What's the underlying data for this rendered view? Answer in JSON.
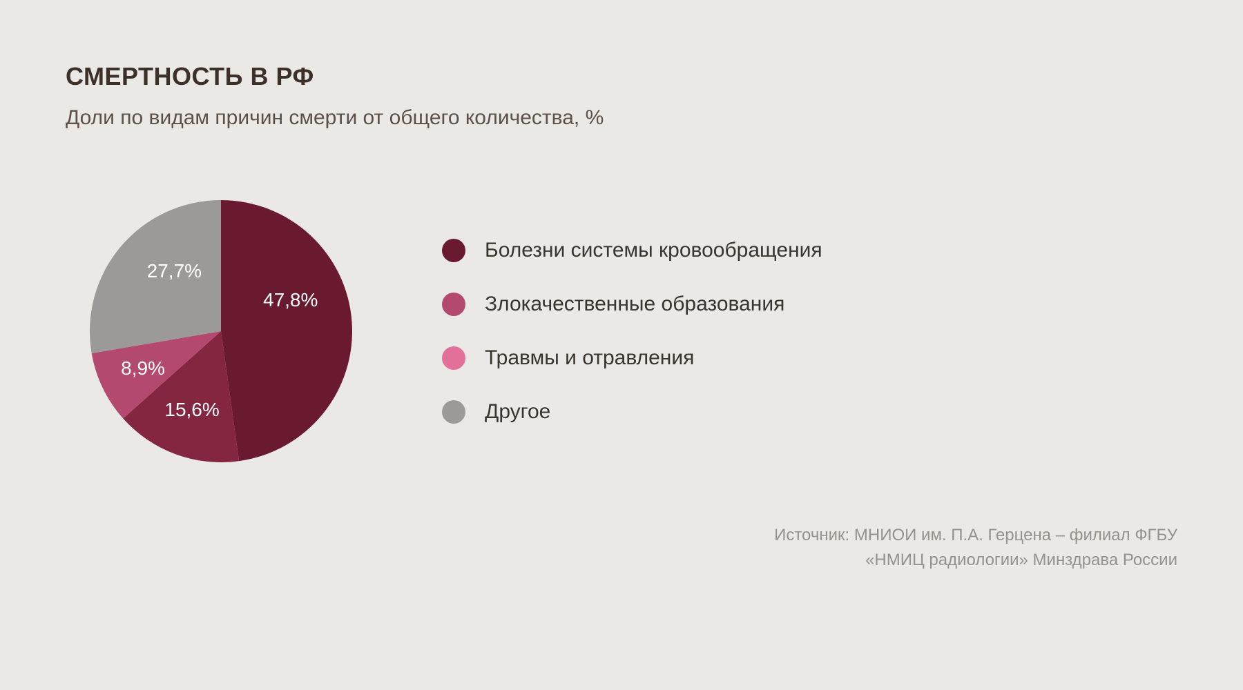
{
  "header": {
    "title": "СМЕРТНОСТЬ В РФ",
    "subtitle": "Доли по видам причин смерти от общего количества, %"
  },
  "chart": {
    "type": "pie",
    "background_color": "#ebe9e5",
    "radius": 190,
    "start_angle_deg": -90,
    "label_color": "#ffffff",
    "label_fontsize": 28,
    "slices": [
      {
        "value": 47.8,
        "label": "47,8%",
        "color": "#6a1a2e",
        "label_r": 0.58,
        "label_angle_offset": -20
      },
      {
        "value": 15.6,
        "label": "15,6%",
        "color": "#842640",
        "label_r": 0.64,
        "label_angle_offset": 0
      },
      {
        "value": 8.9,
        "label": "8,9%",
        "color": "#b3496e",
        "label_r": 0.66,
        "label_angle_offset": 0
      },
      {
        "value": 27.7,
        "label": "27,7%",
        "color": "#9b9a98",
        "label_r": 0.58,
        "label_angle_offset": 12
      }
    ]
  },
  "legend": {
    "items": [
      {
        "label": "Болезни системы кровообращения",
        "color": "#6a1a2e"
      },
      {
        "label": "Злокачественные образования",
        "color": "#b3496e"
      },
      {
        "label": "Травмы и отравления",
        "color": "#e2709a"
      },
      {
        "label": "Другое",
        "color": "#9b9a98"
      }
    ],
    "swatch_size": 34,
    "fontsize": 30,
    "text_color": "#3a342e"
  },
  "source": {
    "line1": "Источник: МНИОИ им. П.А. Герцена – филиал ФГБУ",
    "line2": "«НМИЦ радиологии» Минздрава России",
    "color": "#95928c",
    "fontsize": 24
  }
}
